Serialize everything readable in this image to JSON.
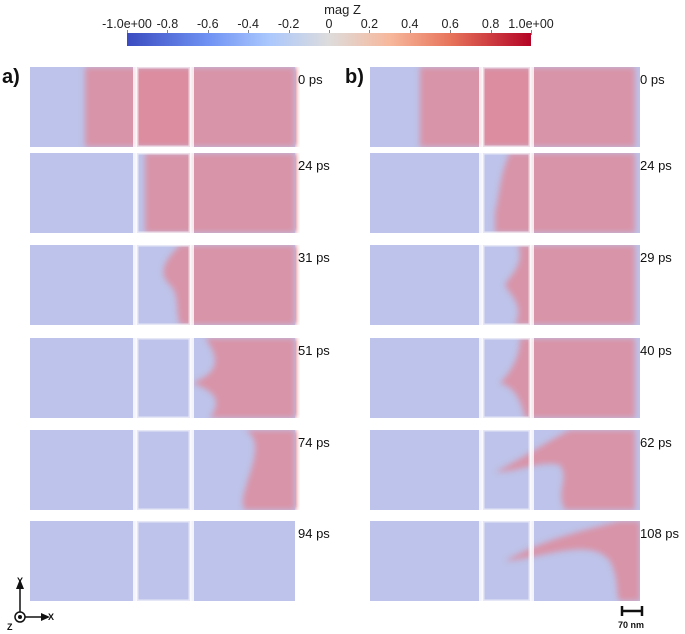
{
  "colorbar": {
    "title": "mag Z",
    "ticks": [
      "-1.0e+00",
      "-0.8",
      "-0.6",
      "-0.4",
      "-0.2",
      "0",
      "0.2",
      "0.4",
      "0.6",
      "0.8",
      "1.0e+00"
    ],
    "colors": {
      "negative": "#3b4cc0",
      "zero": "#dddcdc",
      "positive": "#b40426"
    }
  },
  "panels": [
    {
      "label": "a)",
      "times": [
        "0 ps",
        "24 ps",
        "31 ps",
        "51 ps",
        "74 ps",
        "94 ps"
      ]
    },
    {
      "label": "b)",
      "times": [
        "0 ps",
        "24 ps",
        "29 ps",
        "40 ps",
        "62 ps",
        "108 ps"
      ]
    }
  ],
  "axes": {
    "y": "Y",
    "x": "X",
    "z": "Z"
  },
  "scale_bar": {
    "label": "70 nm"
  }
}
